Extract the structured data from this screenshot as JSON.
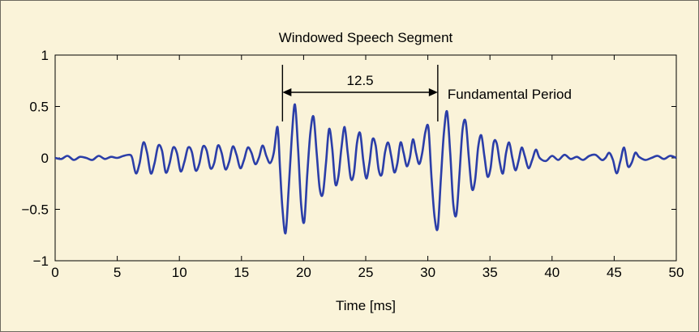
{
  "chart_data": {
    "type": "line",
    "title": "Windowed Speech Segment",
    "xlabel": "Time [ms]",
    "ylabel": "",
    "xlim": [
      0,
      50
    ],
    "ylim": [
      -1,
      1
    ],
    "xticks": [
      "0",
      "5",
      "10",
      "15",
      "20",
      "25",
      "30",
      "35",
      "40",
      "45",
      "50"
    ],
    "yticks": [
      "1",
      "0.5",
      "0",
      "−0.5",
      "−1"
    ],
    "grid": false,
    "line_color": "#2b3ea8",
    "series": [
      {
        "x": [
          0,
          0.5,
          1,
          1.5,
          2,
          2.5,
          3,
          3.5,
          4,
          4.5,
          5,
          5.5,
          6,
          6.2,
          6.5,
          6.8,
          7.1,
          7.4,
          7.7,
          8,
          8.3,
          8.6,
          8.9,
          9.2,
          9.5,
          9.8,
          10.1,
          10.4,
          10.7,
          11,
          11.3,
          11.6,
          11.9,
          12.2,
          12.5,
          12.8,
          13.1,
          13.4,
          13.7,
          14,
          14.3,
          14.6,
          14.9,
          15.2,
          15.5,
          15.8,
          16.1,
          16.4,
          16.7,
          17,
          17.3,
          17.6,
          17.9,
          18.1,
          18.3,
          18.55,
          18.8,
          19.05,
          19.3,
          19.55,
          19.8,
          20.05,
          20.3,
          20.55,
          20.8,
          21.05,
          21.3,
          21.55,
          21.8,
          22.05,
          22.3,
          22.55,
          22.8,
          23.05,
          23.3,
          23.55,
          23.8,
          24.05,
          24.3,
          24.55,
          24.8,
          25.05,
          25.3,
          25.55,
          25.8,
          26.05,
          26.3,
          26.55,
          26.8,
          27.05,
          27.3,
          27.55,
          27.8,
          28.05,
          28.3,
          28.55,
          28.8,
          29.05,
          29.3,
          29.55,
          29.8,
          30.05,
          30.3,
          30.55,
          30.8,
          31.05,
          31.3,
          31.55,
          31.8,
          32.05,
          32.3,
          32.55,
          32.8,
          33.05,
          33.3,
          33.55,
          33.8,
          34.05,
          34.3,
          34.55,
          34.8,
          35.05,
          35.3,
          35.55,
          35.8,
          36.05,
          36.3,
          36.55,
          36.8,
          37.05,
          37.3,
          37.55,
          37.8,
          38.1,
          38.4,
          38.7,
          39,
          39.5,
          40,
          40.5,
          41,
          41.5,
          42,
          42.5,
          43,
          43.5,
          44,
          44.3,
          44.6,
          44.9,
          45.2,
          45.5,
          45.8,
          46.1,
          46.4,
          46.7,
          47,
          47.5,
          48,
          48.5,
          49,
          49.5,
          50
        ],
        "y": [
          0,
          -0.01,
          0.02,
          -0.02,
          0.01,
          0,
          -0.02,
          0.02,
          -0.01,
          0.01,
          0,
          0.02,
          0.03,
          0,
          -0.15,
          -0.05,
          0.15,
          0.05,
          -0.15,
          -0.05,
          0.12,
          0.07,
          -0.14,
          -0.06,
          0.1,
          0.05,
          -0.13,
          -0.04,
          0.1,
          0.06,
          -0.12,
          -0.06,
          0.11,
          0.07,
          -0.1,
          -0.05,
          0.12,
          0.05,
          -0.11,
          -0.04,
          0.11,
          0.03,
          -0.1,
          -0.02,
          0.1,
          0.05,
          -0.06,
          0.0,
          0.12,
          0.02,
          -0.05,
          0.05,
          0.3,
          -0.1,
          -0.5,
          -0.73,
          -0.3,
          0.2,
          0.52,
          0.1,
          -0.45,
          -0.62,
          -0.15,
          0.25,
          0.4,
          0.05,
          -0.3,
          -0.35,
          -0.05,
          0.28,
          0.1,
          -0.25,
          -0.18,
          0.1,
          0.3,
          0.05,
          -0.2,
          -0.15,
          0.15,
          0.24,
          -0.02,
          -0.2,
          -0.05,
          0.18,
          0.12,
          -0.12,
          -0.16,
          0.05,
          0.15,
          0.02,
          -0.14,
          -0.05,
          0.15,
          0.05,
          -0.08,
          0.0,
          0.18,
          0.05,
          -0.06,
          0.05,
          0.25,
          0.29,
          -0.2,
          -0.58,
          -0.68,
          -0.2,
          0.25,
          0.45,
          0.05,
          -0.45,
          -0.55,
          -0.15,
          0.28,
          0.35,
          0.0,
          -0.3,
          -0.22,
          0.1,
          0.22,
          0.02,
          -0.18,
          -0.1,
          0.15,
          0.14,
          -0.05,
          -0.15,
          0.05,
          0.15,
          0.0,
          -0.12,
          -0.03,
          0.1,
          0.02,
          -0.1,
          -0.02,
          0.08,
          0.0,
          -0.03,
          0.02,
          -0.02,
          0.03,
          -0.01,
          0.01,
          -0.02,
          0.02,
          0.03,
          -0.02,
          0.0,
          0.05,
          -0.02,
          -0.15,
          -0.03,
          0.1,
          -0.08,
          -0.05,
          0.05,
          0.01,
          -0.02,
          0.0,
          0.02,
          -0.01,
          0.02,
          0.0
        ]
      }
    ],
    "annotations": [
      {
        "text": "12.5",
        "type": "interval-arrow",
        "x_start": 18.3,
        "x_end": 30.8
      },
      {
        "text": "Fundamental Period"
      }
    ]
  }
}
